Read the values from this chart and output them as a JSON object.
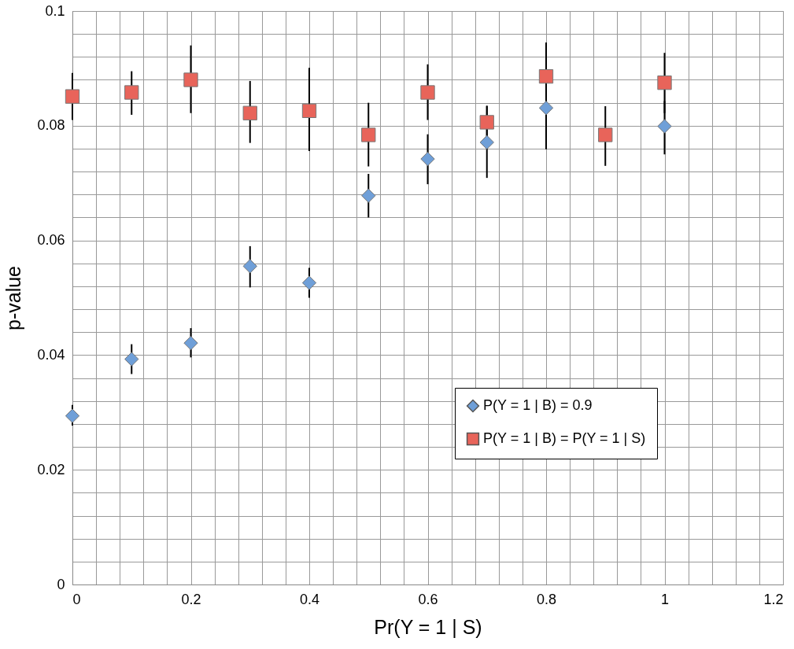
{
  "chart_data": {
    "type": "scatter",
    "xlabel": "Pr(Y = 1 | S)",
    "ylabel": "p-value",
    "x": [
      0,
      0.1,
      0.2,
      0.3,
      0.4,
      0.5,
      0.6,
      0.7,
      0.8,
      0.9,
      1.0
    ],
    "series": [
      {
        "name": "P(Y = 1 | B) = 0.9",
        "color": "#6f9fd8",
        "marker": "diamond",
        "values": [
          0.0294,
          0.0393,
          0.0421,
          0.0555,
          0.0526,
          0.0678,
          0.0742,
          0.0771,
          0.0831,
          null,
          0.0799
        ],
        "errors": [
          [
            0.0277,
            0.0313
          ],
          [
            0.0367,
            0.0419
          ],
          [
            0.0396,
            0.0447
          ],
          [
            0.0518,
            0.059
          ],
          [
            0.05,
            0.0552
          ],
          [
            0.064,
            0.0716
          ],
          [
            0.0698,
            0.0785
          ],
          [
            0.0709,
            0.0835
          ],
          [
            0.0759,
            0.0904
          ],
          null,
          [
            0.075,
            0.0843
          ]
        ]
      },
      {
        "name": "P(Y = 1 | B) = P(Y = 1 | S)",
        "color": "#e8645a",
        "marker": "square",
        "values": [
          0.0851,
          0.0858,
          0.088,
          0.0822,
          0.0826,
          0.0784,
          0.0858,
          0.0806,
          0.0886,
          0.0784,
          0.0875
        ],
        "errors": [
          [
            0.081,
            0.0892
          ],
          [
            0.0819,
            0.0895
          ],
          [
            0.0822,
            0.094
          ],
          [
            0.077,
            0.0878
          ],
          [
            0.0756,
            0.0901
          ],
          [
            0.0729,
            0.084
          ],
          [
            0.081,
            0.0907
          ],
          [
            0.0779,
            0.0834
          ],
          [
            0.0826,
            0.0945
          ],
          [
            0.073,
            0.0834
          ],
          [
            0.0822,
            0.0927
          ]
        ]
      }
    ],
    "xlim": [
      0,
      1.2
    ],
    "xticks": [
      0,
      {
        "value": 0.04,
        "label": null
      },
      {
        "value": 0.08,
        "label": null
      },
      {
        "value": 0.12,
        "label": null
      },
      {
        "value": 0.16,
        "label": null
      },
      0.2,
      {
        "value": 0.24,
        "label": null
      },
      {
        "value": 0.28,
        "label": null
      },
      {
        "value": 0.32,
        "label": null
      },
      {
        "value": 0.36,
        "label": null
      },
      0.4,
      {
        "value": 0.44,
        "label": null
      },
      {
        "value": 0.48,
        "label": null
      },
      {
        "value": 0.52,
        "label": null
      },
      {
        "value": 0.56,
        "label": null
      },
      0.6,
      {
        "value": 0.64,
        "label": null
      },
      {
        "value": 0.68,
        "label": null
      },
      {
        "value": 0.72,
        "label": null
      },
      {
        "value": 0.76,
        "label": null
      },
      0.8,
      {
        "value": 0.84,
        "label": null
      },
      {
        "value": 0.88,
        "label": null
      },
      {
        "value": 0.92,
        "label": null
      },
      {
        "value": 0.96,
        "label": null
      },
      1,
      {
        "value": 1.04,
        "label": null
      },
      {
        "value": 1.08,
        "label": null
      },
      {
        "value": 1.12,
        "label": null
      },
      {
        "value": 1.16,
        "label": null
      },
      1.2
    ],
    "ylim": [
      0,
      0.1
    ],
    "yticks": [
      0,
      {
        "value": 0.004,
        "label": null
      },
      {
        "value": 0.008,
        "label": null
      },
      {
        "value": 0.012,
        "label": null
      },
      {
        "value": 0.016,
        "label": null
      },
      0.02,
      {
        "value": 0.024,
        "label": null
      },
      {
        "value": 0.028,
        "label": null
      },
      {
        "value": 0.032,
        "label": null
      },
      {
        "value": 0.036,
        "label": null
      },
      0.04,
      {
        "value": 0.044,
        "label": null
      },
      {
        "value": 0.048,
        "label": null
      },
      {
        "value": 0.052,
        "label": null
      },
      {
        "value": 0.056,
        "label": null
      },
      0.06,
      {
        "value": 0.064,
        "label": null
      },
      {
        "value": 0.068,
        "label": null
      },
      {
        "value": 0.072,
        "label": null
      },
      {
        "value": 0.076,
        "label": null
      },
      0.08,
      {
        "value": 0.084,
        "label": null
      },
      {
        "value": 0.088,
        "label": null
      },
      {
        "value": 0.092,
        "label": null
      },
      {
        "value": 0.096,
        "label": null
      },
      0.1
    ],
    "grid": true,
    "legend": "bottom right"
  }
}
